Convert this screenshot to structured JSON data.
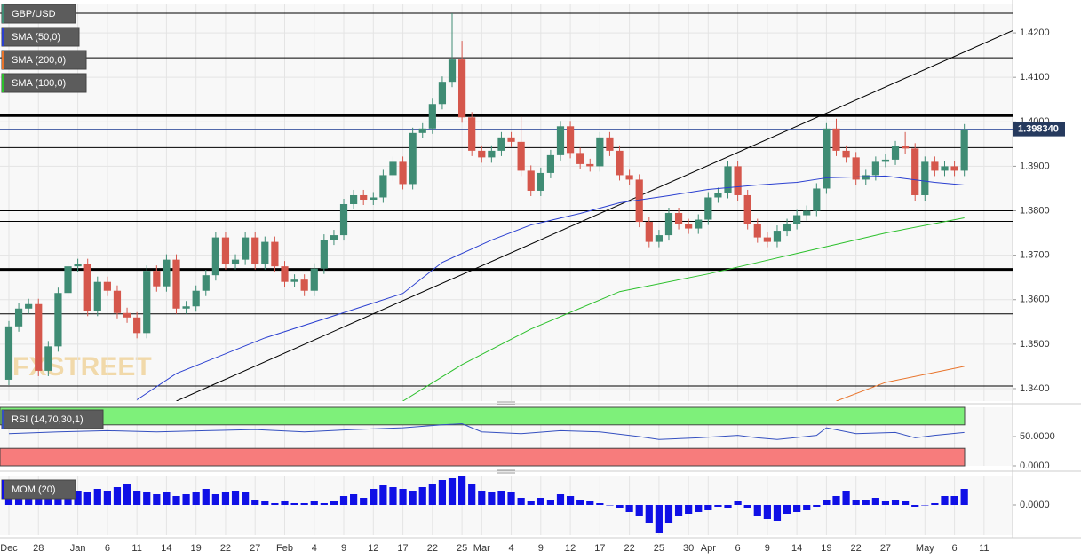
{
  "watermark": "FXSTREET",
  "chart_data": [
    {
      "type": "candlestick",
      "name": "GBP/USD",
      "up_color": "#3f8c74",
      "down_color": "#d5574c",
      "ylim": [
        1.3372,
        1.4264
      ],
      "yticks": [
        {
          "value": 1.42,
          "label": "1.4200"
        },
        {
          "value": 1.41,
          "label": "1.4100"
        },
        {
          "value": 1.4,
          "label": "1.4000"
        },
        {
          "value": 1.39,
          "label": "1.3900"
        },
        {
          "value": 1.38,
          "label": "1.3800"
        },
        {
          "value": 1.37,
          "label": "1.3700"
        },
        {
          "value": 1.36,
          "label": "1.3600"
        },
        {
          "value": 1.35,
          "label": "1.3500"
        },
        {
          "value": 1.34,
          "label": "1.3400"
        }
      ],
      "xlim": [
        -0.9,
        101.9
      ],
      "xticks": [
        {
          "value": 0,
          "label": "Dec"
        },
        {
          "value": 3,
          "label": "28"
        },
        {
          "value": 7,
          "label": "Jan"
        },
        {
          "value": 10,
          "label": "6"
        },
        {
          "value": 13,
          "label": "11"
        },
        {
          "value": 16,
          "label": "14"
        },
        {
          "value": 19,
          "label": "19"
        },
        {
          "value": 22,
          "label": "22"
        },
        {
          "value": 25,
          "label": "27"
        },
        {
          "value": 28,
          "label": "Feb"
        },
        {
          "value": 31,
          "label": "4"
        },
        {
          "value": 34,
          "label": "9"
        },
        {
          "value": 37,
          "label": "12"
        },
        {
          "value": 40,
          "label": "17"
        },
        {
          "value": 43,
          "label": "22"
        },
        {
          "value": 46,
          "label": "25"
        },
        {
          "value": 48,
          "label": "Mar"
        },
        {
          "value": 51,
          "label": "4"
        },
        {
          "value": 54,
          "label": "9"
        },
        {
          "value": 57,
          "label": "12"
        },
        {
          "value": 60,
          "label": "17"
        },
        {
          "value": 63,
          "label": "22"
        },
        {
          "value": 66,
          "label": "25"
        },
        {
          "value": 69,
          "label": "30"
        },
        {
          "value": 71,
          "label": "Apr"
        },
        {
          "value": 74,
          "label": "6"
        },
        {
          "value": 77,
          "label": "9"
        },
        {
          "value": 80,
          "label": "14"
        },
        {
          "value": 83,
          "label": "19"
        },
        {
          "value": 86,
          "label": "22"
        },
        {
          "value": 89,
          "label": "27"
        },
        {
          "value": 93,
          "label": "May"
        },
        {
          "value": 96,
          "label": "6"
        },
        {
          "value": 99,
          "label": "11"
        }
      ],
      "grid": true,
      "ohlc": [
        [
          1.342,
          1.3552,
          1.3408,
          1.354
        ],
        [
          1.354,
          1.3592,
          1.3528,
          1.358
        ],
        [
          1.358,
          1.3602,
          1.3568,
          1.359
        ],
        [
          1.359,
          1.3602,
          1.3428,
          1.344
        ],
        [
          1.344,
          1.3507,
          1.3428,
          1.3495
        ],
        [
          1.3495,
          1.3627,
          1.3483,
          1.3615
        ],
        [
          1.3615,
          1.3687,
          1.3603,
          1.3675
        ],
        [
          1.3675,
          1.3692,
          1.3663,
          1.368
        ],
        [
          1.368,
          1.3692,
          1.3563,
          1.3575
        ],
        [
          1.3575,
          1.3652,
          1.3563,
          1.364
        ],
        [
          1.364,
          1.3652,
          1.3608,
          1.362
        ],
        [
          1.362,
          1.3632,
          1.3558,
          1.357
        ],
        [
          1.357,
          1.3582,
          1.3548,
          1.356
        ],
        [
          1.356,
          1.3572,
          1.3513,
          1.3525
        ],
        [
          1.3525,
          1.3677,
          1.3513,
          1.3665
        ],
        [
          1.3665,
          1.3677,
          1.3618,
          1.363
        ],
        [
          1.363,
          1.3702,
          1.3618,
          1.369
        ],
        [
          1.369,
          1.3702,
          1.3568,
          1.358
        ],
        [
          1.358,
          1.3597,
          1.3568,
          1.3585
        ],
        [
          1.3585,
          1.3632,
          1.3573,
          1.362
        ],
        [
          1.362,
          1.3667,
          1.3608,
          1.3655
        ],
        [
          1.3655,
          1.3752,
          1.3643,
          1.374
        ],
        [
          1.374,
          1.3752,
          1.3668,
          1.368
        ],
        [
          1.368,
          1.3702,
          1.3668,
          1.369
        ],
        [
          1.369,
          1.3752,
          1.3678,
          1.374
        ],
        [
          1.374,
          1.3752,
          1.3668,
          1.368
        ],
        [
          1.368,
          1.3742,
          1.3668,
          1.373
        ],
        [
          1.373,
          1.3742,
          1.3663,
          1.3675
        ],
        [
          1.3675,
          1.3687,
          1.3628,
          1.364
        ],
        [
          1.364,
          1.3657,
          1.3628,
          1.3645
        ],
        [
          1.3645,
          1.3657,
          1.3608,
          1.362
        ],
        [
          1.362,
          1.3682,
          1.3608,
          1.367
        ],
        [
          1.367,
          1.3747,
          1.3658,
          1.3735
        ],
        [
          1.3735,
          1.3757,
          1.3723,
          1.3745
        ],
        [
          1.3745,
          1.3827,
          1.3733,
          1.3815
        ],
        [
          1.3815,
          1.3847,
          1.3803,
          1.3835
        ],
        [
          1.3835,
          1.3847,
          1.3813,
          1.3825
        ],
        [
          1.3825,
          1.3842,
          1.3813,
          1.383
        ],
        [
          1.383,
          1.3892,
          1.3818,
          1.388
        ],
        [
          1.388,
          1.3922,
          1.3868,
          1.391
        ],
        [
          1.391,
          1.3922,
          1.3848,
          1.386
        ],
        [
          1.386,
          1.3987,
          1.3848,
          1.3975
        ],
        [
          1.3975,
          1.3997,
          1.3963,
          1.3985
        ],
        [
          1.3985,
          1.4052,
          1.3973,
          1.404
        ],
        [
          1.404,
          1.4102,
          1.4028,
          1.409
        ],
        [
          1.409,
          1.4244,
          1.4078,
          1.414
        ],
        [
          1.414,
          1.4182,
          1.3998,
          1.401
        ],
        [
          1.401,
          1.4022,
          1.3923,
          1.3935
        ],
        [
          1.3935,
          1.3947,
          1.3908,
          1.392
        ],
        [
          1.392,
          1.3947,
          1.3908,
          1.3935
        ],
        [
          1.3935,
          1.3977,
          1.3923,
          1.3965
        ],
        [
          1.3965,
          1.3977,
          1.3943,
          1.3955
        ],
        [
          1.3955,
          1.4012,
          1.3878,
          1.389
        ],
        [
          1.389,
          1.3902,
          1.3833,
          1.3845
        ],
        [
          1.3845,
          1.3897,
          1.3833,
          1.3885
        ],
        [
          1.3885,
          1.3937,
          1.3873,
          1.3925
        ],
        [
          1.3925,
          1.4002,
          1.3913,
          1.399
        ],
        [
          1.399,
          1.4002,
          1.3918,
          1.393
        ],
        [
          1.393,
          1.3942,
          1.3893,
          1.3905
        ],
        [
          1.3905,
          1.3917,
          1.3888,
          1.39
        ],
        [
          1.39,
          1.3977,
          1.3888,
          1.3965
        ],
        [
          1.3965,
          1.3977,
          1.3923,
          1.3935
        ],
        [
          1.3935,
          1.3947,
          1.3868,
          1.388
        ],
        [
          1.388,
          1.3892,
          1.3858,
          1.387
        ],
        [
          1.387,
          1.3882,
          1.3763,
          1.3775
        ],
        [
          1.3775,
          1.3787,
          1.3718,
          1.373
        ],
        [
          1.373,
          1.3757,
          1.3718,
          1.3745
        ],
        [
          1.3745,
          1.3807,
          1.3733,
          1.3795
        ],
        [
          1.3795,
          1.3807,
          1.3758,
          1.377
        ],
        [
          1.377,
          1.3782,
          1.3748,
          1.376
        ],
        [
          1.376,
          1.3792,
          1.3748,
          1.378
        ],
        [
          1.378,
          1.3842,
          1.3768,
          1.383
        ],
        [
          1.383,
          1.3852,
          1.3818,
          1.384
        ],
        [
          1.384,
          1.3912,
          1.3828,
          1.39
        ],
        [
          1.39,
          1.3912,
          1.3823,
          1.3835
        ],
        [
          1.3835,
          1.3847,
          1.3758,
          1.377
        ],
        [
          1.377,
          1.3782,
          1.3728,
          1.374
        ],
        [
          1.374,
          1.3752,
          1.3718,
          1.373
        ],
        [
          1.373,
          1.3767,
          1.3718,
          1.3755
        ],
        [
          1.3755,
          1.3782,
          1.3743,
          1.377
        ],
        [
          1.377,
          1.3802,
          1.3758,
          1.379
        ],
        [
          1.379,
          1.3812,
          1.3778,
          1.38
        ],
        [
          1.38,
          1.3862,
          1.3788,
          1.385
        ],
        [
          1.385,
          1.3997,
          1.3838,
          1.3985
        ],
        [
          1.3985,
          1.4007,
          1.3923,
          1.3935
        ],
        [
          1.3935,
          1.3947,
          1.3908,
          1.392
        ],
        [
          1.392,
          1.3932,
          1.3858,
          1.387
        ],
        [
          1.387,
          1.3892,
          1.3858,
          1.388
        ],
        [
          1.388,
          1.3922,
          1.3868,
          1.391
        ],
        [
          1.391,
          1.3927,
          1.3898,
          1.3915
        ],
        [
          1.3915,
          1.3957,
          1.3903,
          1.3945
        ],
        [
          1.3945,
          1.3977,
          1.3928,
          1.394
        ],
        [
          1.394,
          1.3952,
          1.3823,
          1.3835
        ],
        [
          1.3835,
          1.3922,
          1.3823,
          1.391
        ],
        [
          1.391,
          1.3922,
          1.3878,
          1.389
        ],
        [
          1.389,
          1.3912,
          1.3878,
          1.39
        ],
        [
          1.39,
          1.3912,
          1.3878,
          1.389
        ],
        [
          1.389,
          1.3995,
          1.3878,
          1.3983
        ]
      ],
      "series": [
        {
          "name": "SMA (50,0)",
          "color": "#2a3fd0",
          "x": [
            13,
            17,
            26,
            35,
            40,
            44,
            49,
            53,
            58,
            62,
            67,
            71,
            76,
            80,
            83,
            89,
            94,
            97
          ],
          "values": [
            1.3375,
            1.3434,
            1.3514,
            1.3578,
            1.3614,
            1.3684,
            1.3734,
            1.3768,
            1.3794,
            1.3818,
            1.3834,
            1.3848,
            1.3858,
            1.3864,
            1.3874,
            1.3878,
            1.3864,
            1.3858
          ]
        },
        {
          "name": "SMA (200,0)",
          "color": "#e8732a",
          "x": [
            84,
            89,
            97
          ],
          "values": [
            1.3372,
            1.3414,
            1.345
          ]
        },
        {
          "name": "SMA (100,0)",
          "color": "#2cc02c",
          "x": [
            40,
            46,
            53,
            62,
            71,
            80,
            89,
            97
          ],
          "values": [
            1.3372,
            1.3454,
            1.3534,
            1.3618,
            1.3658,
            1.3704,
            1.375,
            1.3784
          ]
        }
      ],
      "levels": [
        {
          "value": 1.4244
        },
        {
          "value": 1.4144
        },
        {
          "value": 1.4014,
          "bold": true
        },
        {
          "value": 1.3942
        },
        {
          "value": 1.38
        },
        {
          "value": 1.3776
        },
        {
          "value": 1.3668,
          "bold": true
        },
        {
          "value": 1.3568
        },
        {
          "value": 1.3406
        }
      ],
      "trendline": {
        "x": [
          17,
          102
        ],
        "values": [
          1.3372,
          1.4206
        ]
      },
      "last_price": {
        "value": 1.39834,
        "label": "1.398340"
      }
    },
    {
      "type": "line",
      "name": "RSI (14,70,30,1)",
      "color": "#3550c0",
      "ylim": [
        0,
        100
      ],
      "yticks": [
        {
          "value": 50,
          "label": "50.0000"
        },
        {
          "value": 0,
          "label": "0.0000"
        }
      ],
      "overbought": 70,
      "oversold": 30,
      "x": [
        0,
        5,
        10,
        15,
        20,
        25,
        30,
        35,
        40,
        44,
        46,
        48,
        52,
        56,
        60,
        64,
        66,
        70,
        74,
        76,
        78,
        82,
        83,
        86,
        90,
        92,
        94,
        97
      ],
      "values": [
        55,
        58,
        60,
        58,
        60,
        62,
        58,
        62,
        65,
        70,
        72,
        58,
        55,
        60,
        58,
        50,
        45,
        48,
        52,
        48,
        45,
        52,
        65,
        55,
        57,
        48,
        52,
        57
      ]
    },
    {
      "type": "bar",
      "name": "MOM (20)",
      "color": "#1010e6",
      "ylim": [
        -0.034,
        0.032
      ],
      "yticks": [
        {
          "value": 0,
          "label": "0.0000"
        }
      ],
      "values": [
        0.018,
        0.012,
        0.01,
        0.012,
        0.01,
        0.012,
        0.014,
        0.016,
        0.014,
        0.018,
        0.016,
        0.02,
        0.024,
        0.016,
        0.014,
        0.012,
        0.014,
        0.01,
        0.012,
        0.014,
        0.018,
        0.012,
        0.014,
        0.016,
        0.014,
        0.006,
        0.004,
        0.002,
        0.004,
        0.002,
        0.002,
        0.004,
        0.002,
        0.004,
        0.01,
        0.012,
        0.008,
        0.018,
        0.022,
        0.02,
        0.018,
        0.016,
        0.02,
        0.024,
        0.028,
        0.03,
        0.032,
        0.024,
        0.016,
        0.014,
        0.016,
        0.014,
        0.008,
        0.004,
        0.008,
        0.006,
        0.012,
        0.01,
        0.006,
        0.004,
        0.002,
        0.0,
        -0.004,
        -0.008,
        -0.012,
        -0.02,
        -0.032,
        -0.02,
        -0.012,
        -0.01,
        -0.008,
        -0.006,
        -0.002,
        -0.004,
        0.004,
        -0.004,
        -0.012,
        -0.016,
        -0.018,
        -0.01,
        -0.008,
        -0.006,
        -0.002,
        0.006,
        0.01,
        0.016,
        0.006,
        0.006,
        0.008,
        0.004,
        0.006,
        0.004,
        -0.002,
        0.0,
        0.002,
        0.01,
        0.01,
        0.018
      ]
    }
  ]
}
